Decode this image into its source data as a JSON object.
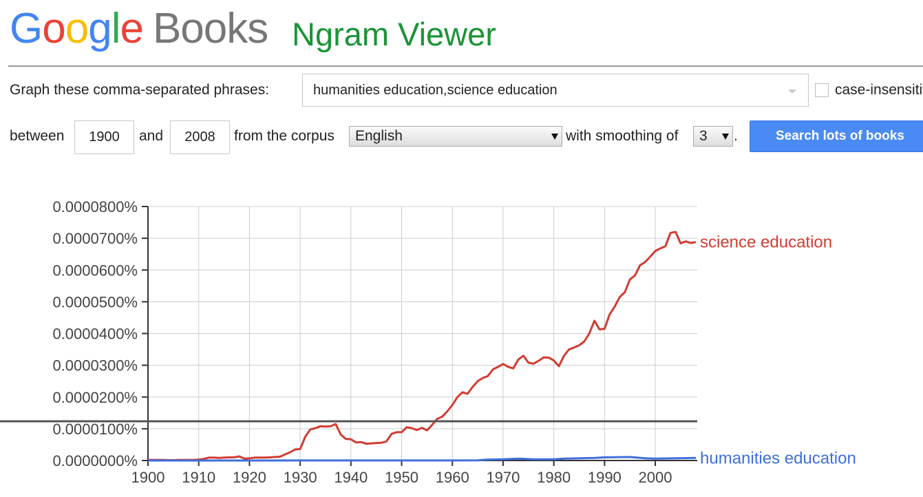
{
  "header": {
    "logo_google": "Google",
    "logo_books": "Books",
    "app_title": "Ngram Viewer",
    "title_color": "#1a9436"
  },
  "query": {
    "phrases_label": "Graph these comma-separated phrases:",
    "phrases_value": "humanities education,science education",
    "case_insensitive_label": "case-insensitive",
    "case_insensitive_checked": false,
    "between_label": "between",
    "start_year": "1900",
    "and_label": "and",
    "end_year": "2008",
    "corpus_label": "from the corpus",
    "corpus_value": "English",
    "smoothing_label": "with smoothing of",
    "smoothing_value": "3",
    "smoothing_period": ".",
    "search_button_label": "Search lots of books"
  },
  "chart_data": {
    "type": "line",
    "x_range": [
      1900,
      2008
    ],
    "ylim": [
      0,
      8e-07
    ],
    "y_ticks": [
      "0.0000000%",
      "0.0000100%",
      "0.0000200%",
      "0.0000300%",
      "0.0000400%",
      "0.0000500%",
      "0.0000600%",
      "0.0000700%",
      "0.0000800%"
    ],
    "x_ticks": [
      "1900",
      "1910",
      "1920",
      "1930",
      "1940",
      "1950",
      "1960",
      "1970",
      "1980",
      "1990",
      "2000"
    ],
    "grid": true,
    "legend": "inline-right",
    "series": [
      {
        "name": "science education",
        "color": "#d23c31",
        "points": [
          [
            1900,
            2e-09
          ],
          [
            1901,
            2e-09
          ],
          [
            1902,
            2e-09
          ],
          [
            1903,
            2e-09
          ],
          [
            1904,
            1e-09
          ],
          [
            1905,
            1e-09
          ],
          [
            1906,
            2e-09
          ],
          [
            1907,
            2e-09
          ],
          [
            1908,
            2e-09
          ],
          [
            1909,
            2e-09
          ],
          [
            1910,
            3e-09
          ],
          [
            1911,
            5e-09
          ],
          [
            1912,
            9e-09
          ],
          [
            1913,
            9e-09
          ],
          [
            1914,
            8e-09
          ],
          [
            1915,
            9e-09
          ],
          [
            1916,
            1e-08
          ],
          [
            1917,
            1e-08
          ],
          [
            1918,
            1.3e-08
          ],
          [
            1919,
            6e-09
          ],
          [
            1920,
            7e-09
          ],
          [
            1921,
            9e-09
          ],
          [
            1922,
            9e-09
          ],
          [
            1923,
            9e-09
          ],
          [
            1924,
            1e-08
          ],
          [
            1925,
            1.1e-08
          ],
          [
            1926,
            1.2e-08
          ],
          [
            1927,
            1.9e-08
          ],
          [
            1928,
            2.6e-08
          ],
          [
            1929,
            3.5e-08
          ],
          [
            1930,
            3.6e-08
          ],
          [
            1931,
            7.5e-08
          ],
          [
            1932,
            9.8e-08
          ],
          [
            1933,
            1.02e-07
          ],
          [
            1934,
            1.08e-07
          ],
          [
            1935,
            1.07e-07
          ],
          [
            1936,
            1.08e-07
          ],
          [
            1937,
            1.15e-07
          ],
          [
            1938,
            8.2e-08
          ],
          [
            1939,
            6.8e-08
          ],
          [
            1940,
            6.7e-08
          ],
          [
            1941,
            5.7e-08
          ],
          [
            1942,
            5.8e-08
          ],
          [
            1943,
            5.3e-08
          ],
          [
            1944,
            5.4e-08
          ],
          [
            1945,
            5.5e-08
          ],
          [
            1946,
            5.6e-08
          ],
          [
            1947,
            6e-08
          ],
          [
            1948,
            8.4e-08
          ],
          [
            1949,
            8.9e-08
          ],
          [
            1950,
            8.9e-08
          ],
          [
            1951,
            1.05e-07
          ],
          [
            1952,
            1.02e-07
          ],
          [
            1953,
            9.6e-08
          ],
          [
            1954,
            1.03e-07
          ],
          [
            1955,
            9.5e-08
          ],
          [
            1956,
            1.12e-07
          ],
          [
            1957,
            1.31e-07
          ],
          [
            1958,
            1.38e-07
          ],
          [
            1959,
            1.55e-07
          ],
          [
            1960,
            1.75e-07
          ],
          [
            1961,
            2e-07
          ],
          [
            1962,
            2.15e-07
          ],
          [
            1963,
            2.1e-07
          ],
          [
            1964,
            2.32e-07
          ],
          [
            1965,
            2.5e-07
          ],
          [
            1966,
            2.6e-07
          ],
          [
            1967,
            2.66e-07
          ],
          [
            1968,
            2.87e-07
          ],
          [
            1969,
            2.95e-07
          ],
          [
            1970,
            3.04e-07
          ],
          [
            1971,
            2.95e-07
          ],
          [
            1972,
            2.9e-07
          ],
          [
            1973,
            3.18e-07
          ],
          [
            1974,
            3.3e-07
          ],
          [
            1975,
            3.08e-07
          ],
          [
            1976,
            3.05e-07
          ],
          [
            1977,
            3.14e-07
          ],
          [
            1978,
            3.25e-07
          ],
          [
            1979,
            3.24e-07
          ],
          [
            1980,
            3.15e-07
          ],
          [
            1981,
            2.97e-07
          ],
          [
            1982,
            3.3e-07
          ],
          [
            1983,
            3.5e-07
          ],
          [
            1984,
            3.56e-07
          ],
          [
            1985,
            3.63e-07
          ],
          [
            1986,
            3.75e-07
          ],
          [
            1987,
            4e-07
          ],
          [
            1988,
            4.4e-07
          ],
          [
            1989,
            4.13e-07
          ],
          [
            1990,
            4.15e-07
          ],
          [
            1991,
            4.6e-07
          ],
          [
            1992,
            4.85e-07
          ],
          [
            1993,
            5.15e-07
          ],
          [
            1994,
            5.3e-07
          ],
          [
            1995,
            5.7e-07
          ],
          [
            1996,
            5.83e-07
          ],
          [
            1997,
            6.15e-07
          ],
          [
            1998,
            6.25e-07
          ],
          [
            1999,
            6.42e-07
          ],
          [
            2000,
            6.6e-07
          ],
          [
            2001,
            6.68e-07
          ],
          [
            2002,
            6.75e-07
          ],
          [
            2003,
            7.17e-07
          ],
          [
            2004,
            7.2e-07
          ],
          [
            2005,
            6.84e-07
          ],
          [
            2006,
            6.9e-07
          ],
          [
            2007,
            6.85e-07
          ],
          [
            2008,
            6.88e-07
          ]
        ]
      },
      {
        "name": "humanities education",
        "color": "#3d6fdb",
        "points": [
          [
            1900,
            0
          ],
          [
            1910,
            1e-10
          ],
          [
            1920,
            1e-10
          ],
          [
            1930,
            2e-10
          ],
          [
            1940,
            2e-10
          ],
          [
            1950,
            3e-10
          ],
          [
            1960,
            3e-10
          ],
          [
            1965,
            5e-10
          ],
          [
            1967,
            3e-09
          ],
          [
            1970,
            4e-09
          ],
          [
            1973,
            6e-09
          ],
          [
            1976,
            4e-09
          ],
          [
            1980,
            4e-09
          ],
          [
            1982,
            6e-09
          ],
          [
            1985,
            7e-09
          ],
          [
            1988,
            8e-09
          ],
          [
            1990,
            1e-08
          ],
          [
            1995,
            1.1e-08
          ],
          [
            1998,
            7e-09
          ],
          [
            2000,
            6e-09
          ],
          [
            2004,
            7e-09
          ],
          [
            2008,
            8e-09
          ]
        ]
      }
    ]
  }
}
